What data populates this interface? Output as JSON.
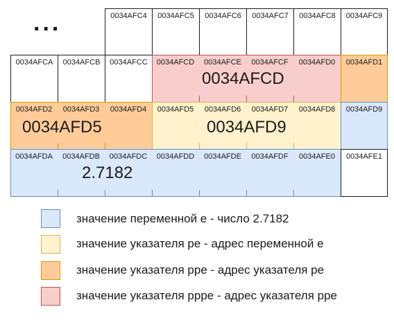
{
  "ellipsis": "...",
  "row1": [
    "0034AFC4",
    "0034AFC5",
    "0034AFC6",
    "0034AFC7",
    "0034AFC8",
    "0034AFC9"
  ],
  "row2": [
    "0034AFCA",
    "0034AFCB",
    "0034AFCC",
    "0034AFCD",
    "0034AFCE",
    "0034AFCF",
    "0034AFD0",
    "0034AFD1"
  ],
  "row3": [
    "0034AFD2",
    "0034AFD3",
    "0034AFD4",
    "0034AFD5",
    "0034AFD6",
    "0034AFD7",
    "0034AFD8",
    "0034AFD9"
  ],
  "row4": [
    "0034AFDA",
    "0034AFDB",
    "0034AFDC",
    "0034AFDD",
    "0034AFDE",
    "0034AFDF",
    "0034AFE0",
    "0034AFE1"
  ],
  "values": {
    "ppe": "0034AFCD",
    "pe": "0034AFD5",
    "e_addr": "0034AFD9",
    "e": "2.7182"
  },
  "legend": [
    {
      "text": "значение переменной е - число 2.7182",
      "fill": "#dae8fc",
      "stroke": "#6c8ebf"
    },
    {
      "text": "значение указателя pe - адрес переменной е",
      "fill": "#fff2cc",
      "stroke": "#d6b656"
    },
    {
      "text": "значение указателя ppe - адрес указателя pe",
      "fill": "#ffcc99",
      "stroke": "#d79b00"
    },
    {
      "text": "значение указателя pppe - адрес указателя ppe",
      "fill": "#f8cecc",
      "stroke": "#b85450"
    }
  ]
}
